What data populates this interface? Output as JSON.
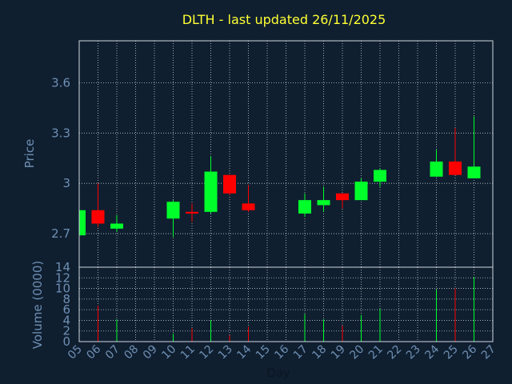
{
  "title": "DLTH - last updated 26/11/2025",
  "colors": {
    "background": "#0f1f30",
    "title": "#ffff33",
    "axis_text": "#6f8fb3",
    "frame": "#d0d7e0",
    "grid": "#ffffff",
    "up": "#00ff2a",
    "down": "#ff0000"
  },
  "chart_data": [
    {
      "type": "candlestick",
      "ylabel": "Price",
      "ylim": [
        2.5,
        3.85
      ],
      "yticks": [
        2.7,
        3.0,
        3.3,
        3.6
      ],
      "ytick_labels": [
        "2.7",
        "3",
        "3.3",
        "3.6"
      ],
      "grid": true,
      "candles": [
        {
          "day": 5,
          "open": 2.69,
          "high": 2.84,
          "low": 2.69,
          "close": 2.84
        },
        {
          "day": 6,
          "open": 2.84,
          "high": 3.0,
          "low": 2.74,
          "close": 2.76
        },
        {
          "day": 7,
          "open": 2.73,
          "high": 2.81,
          "low": 2.71,
          "close": 2.76
        },
        {
          "day": 10,
          "open": 2.79,
          "high": 2.9,
          "low": 2.68,
          "close": 2.89
        },
        {
          "day": 11,
          "open": 2.83,
          "high": 2.88,
          "low": 2.77,
          "close": 2.82
        },
        {
          "day": 12,
          "open": 2.83,
          "high": 3.16,
          "low": 2.82,
          "close": 3.07
        },
        {
          "day": 13,
          "open": 3.05,
          "high": 3.05,
          "low": 2.93,
          "close": 2.94
        },
        {
          "day": 14,
          "open": 2.88,
          "high": 2.99,
          "low": 2.83,
          "close": 2.84
        },
        {
          "day": 17,
          "open": 2.82,
          "high": 2.94,
          "low": 2.8,
          "close": 2.9
        },
        {
          "day": 18,
          "open": 2.87,
          "high": 2.98,
          "low": 2.83,
          "close": 2.9
        },
        {
          "day": 19,
          "open": 2.94,
          "high": 2.94,
          "low": 2.85,
          "close": 2.9
        },
        {
          "day": 20,
          "open": 2.9,
          "high": 3.03,
          "low": 2.9,
          "close": 3.01
        },
        {
          "day": 21,
          "open": 3.01,
          "high": 3.09,
          "low": 2.98,
          "close": 3.08
        },
        {
          "day": 24,
          "open": 3.04,
          "high": 3.2,
          "low": 3.04,
          "close": 3.13
        },
        {
          "day": 25,
          "open": 3.13,
          "high": 3.33,
          "low": 3.05,
          "close": 3.05
        },
        {
          "day": 26,
          "open": 3.03,
          "high": 3.4,
          "low": 3.03,
          "close": 3.1
        }
      ]
    },
    {
      "type": "bar",
      "ylabel": "Volume (0000)",
      "xlabel": "Day",
      "ylim": [
        0,
        14
      ],
      "yticks": [
        0,
        2,
        4,
        6,
        8,
        10,
        12,
        14
      ],
      "ytick_labels": [
        "0",
        "2",
        "4",
        "6",
        "8",
        "10",
        "12",
        "14"
      ],
      "x_range": [
        5,
        27
      ],
      "x_tick_labels": [
        "05",
        "06",
        "07",
        "08",
        "09",
        "10",
        "11",
        "12",
        "13",
        "14",
        "15",
        "16",
        "17",
        "18",
        "19",
        "20",
        "21",
        "22",
        "23",
        "24",
        "25",
        "26",
        "27"
      ],
      "grid": true,
      "bars": [
        {
          "day": 5,
          "value": 0.3,
          "dir": "up"
        },
        {
          "day": 6,
          "value": 6.8,
          "dir": "down"
        },
        {
          "day": 7,
          "value": 4.2,
          "dir": "up"
        },
        {
          "day": 10,
          "value": 1.5,
          "dir": "up"
        },
        {
          "day": 11,
          "value": 2.5,
          "dir": "down"
        },
        {
          "day": 12,
          "value": 4.0,
          "dir": "up"
        },
        {
          "day": 13,
          "value": 1.2,
          "dir": "down"
        },
        {
          "day": 14,
          "value": 2.8,
          "dir": "down"
        },
        {
          "day": 17,
          "value": 5.2,
          "dir": "up"
        },
        {
          "day": 18,
          "value": 4.2,
          "dir": "up"
        },
        {
          "day": 19,
          "value": 3.0,
          "dir": "down"
        },
        {
          "day": 20,
          "value": 5.0,
          "dir": "up"
        },
        {
          "day": 21,
          "value": 6.2,
          "dir": "up"
        },
        {
          "day": 24,
          "value": 9.8,
          "dir": "up"
        },
        {
          "day": 25,
          "value": 10.0,
          "dir": "down"
        },
        {
          "day": 26,
          "value": 12.2,
          "dir": "up"
        }
      ]
    }
  ]
}
